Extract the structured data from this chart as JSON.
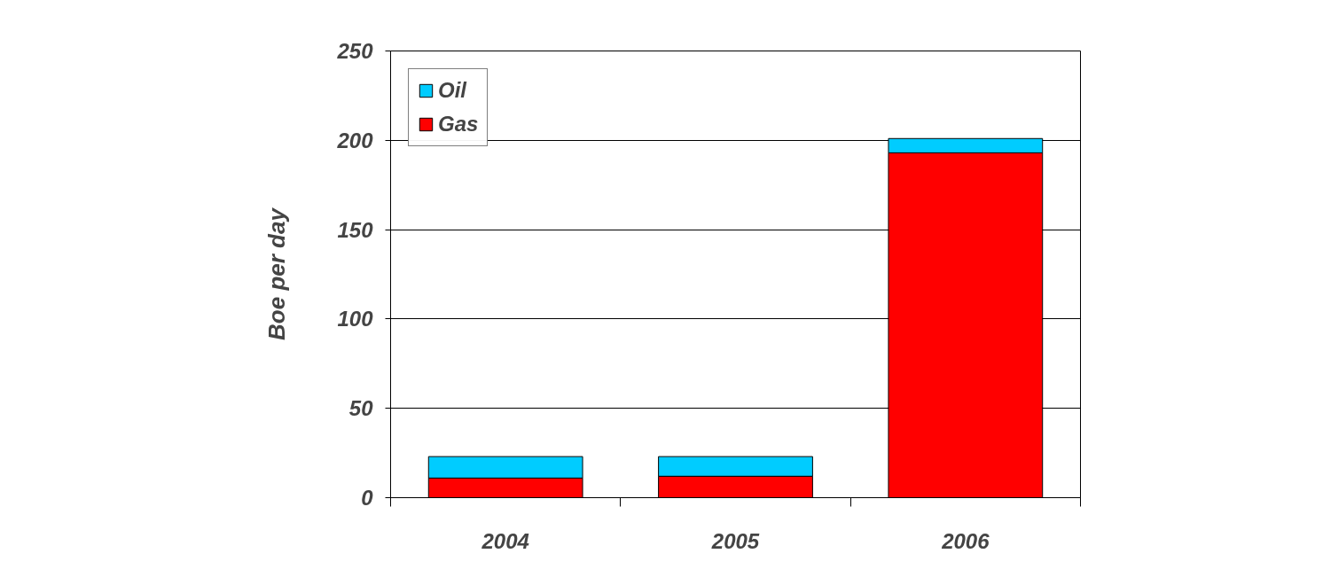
{
  "chart_data": {
    "type": "bar",
    "stacked": true,
    "ylabel": "Boe per day",
    "categories": [
      "2004",
      "2005",
      "2006"
    ],
    "series": [
      {
        "name": "Gas",
        "color": "#ff0000",
        "values": [
          11,
          12,
          193
        ]
      },
      {
        "name": "Oil",
        "color": "#00ccff",
        "values": [
          12,
          11,
          8
        ]
      }
    ],
    "ylim": [
      0,
      250
    ],
    "yticks": [
      0,
      50,
      100,
      150,
      200,
      250
    ],
    "grid": "y",
    "legend": "top left"
  }
}
